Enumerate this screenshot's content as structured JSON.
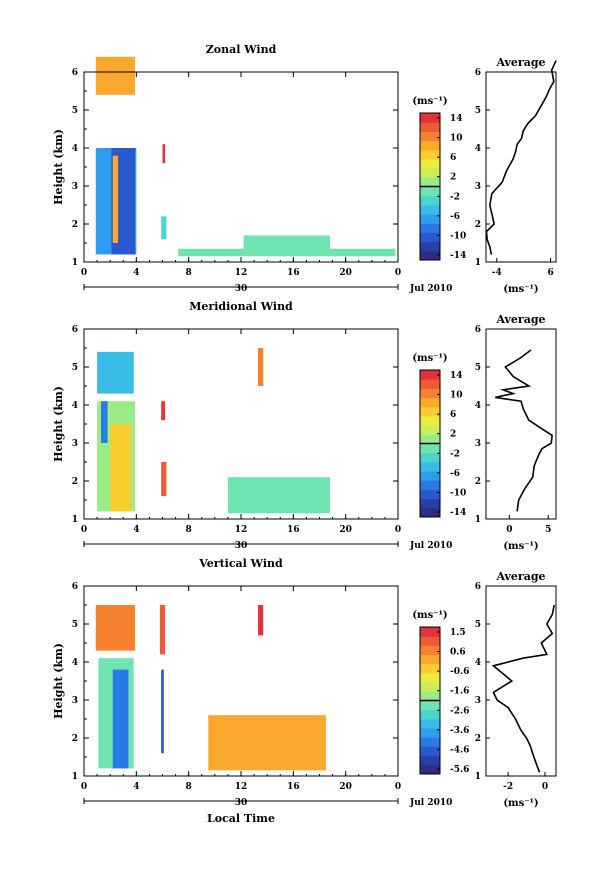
{
  "footer_xlabel": "Local Time",
  "colors": {
    "jet": [
      "#2b2f7a",
      "#2a3ea8",
      "#2b57cf",
      "#2a79e6",
      "#2e9df0",
      "#39bce6",
      "#4bd5d0",
      "#70e4b0",
      "#9deb86",
      "#c8ee5e",
      "#ecec3c",
      "#f8ce2e",
      "#fba92c",
      "#f6822f",
      "#ee5a35",
      "#e2333a"
    ]
  },
  "chart_data": [
    {
      "type": "heatmap",
      "title": "Zonal Wind",
      "ylabel": "Height (km)",
      "xlim": [
        0,
        24
      ],
      "ylim": [
        1,
        6
      ],
      "xticks": [
        "0",
        "4",
        "8",
        "12",
        "16",
        "20",
        "0"
      ],
      "yticks": [
        "1",
        "2",
        "3",
        "4",
        "5",
        "6"
      ],
      "date_label": "30",
      "date_right": "Jul 2010",
      "colorbar": {
        "unit": "(ms⁻¹)",
        "ticks": [
          "14",
          "10",
          "6",
          "2",
          "-2",
          "-6",
          "-10",
          "-14"
        ],
        "min": -16,
        "max": 16
      },
      "regions": [
        {
          "x0": 0.9,
          "x1": 3.9,
          "y0": 5.4,
          "y1": 6.4,
          "value": 9
        },
        {
          "x0": 0.9,
          "x1": 4.0,
          "y0": 1.2,
          "y1": 4.0,
          "value": -7
        },
        {
          "x0": 2.1,
          "x1": 3.9,
          "y0": 1.2,
          "y1": 4.0,
          "value": -12
        },
        {
          "x0": 2.2,
          "x1": 2.6,
          "y0": 1.5,
          "y1": 3.8,
          "value": 8
        },
        {
          "x0": 6.0,
          "x1": 6.2,
          "y0": 3.6,
          "y1": 4.1,
          "value": 14
        },
        {
          "x0": 5.9,
          "x1": 6.3,
          "y0": 1.6,
          "y1": 2.2,
          "value": -4
        },
        {
          "x0": 7.2,
          "x1": 23.8,
          "y0": 1.15,
          "y1": 1.35,
          "value": -1
        },
        {
          "x0": 12.2,
          "x1": 18.8,
          "y0": 1.2,
          "y1": 1.7,
          "value": -1
        }
      ],
      "profile": {
        "title": "Average",
        "unit": "(ms⁻¹)",
        "xlim": [
          -6,
          7
        ],
        "xticks": [
          "-4",
          "6"
        ],
        "xtick_values": [
          -4,
          6
        ],
        "x": [
          -5.0,
          -5.3,
          -5.8,
          -5.9,
          -4.5,
          -4.8,
          -5.3,
          -4.9,
          -3.0,
          -2.2,
          -1.0,
          -0.5,
          -0.2,
          0.6,
          0.9,
          1.8,
          3.2,
          4.2,
          5.2,
          5.8,
          6.6,
          6.2,
          7.0
        ],
        "y": [
          1.2,
          1.4,
          1.6,
          1.8,
          2.0,
          2.2,
          2.5,
          2.8,
          3.1,
          3.4,
          3.7,
          3.9,
          4.1,
          4.25,
          4.45,
          4.65,
          4.85,
          5.1,
          5.35,
          5.55,
          5.75,
          6.05,
          6.3
        ]
      }
    },
    {
      "type": "heatmap",
      "title": "Meridional Wind",
      "ylabel": "Height (km)",
      "xlim": [
        0,
        24
      ],
      "ylim": [
        1,
        6
      ],
      "xticks": [
        "0",
        "4",
        "8",
        "12",
        "16",
        "20",
        "0"
      ],
      "yticks": [
        "1",
        "2",
        "3",
        "4",
        "5",
        "6"
      ],
      "date_label": "30",
      "date_right": "Jul 2010",
      "colorbar": {
        "unit": "(ms⁻¹)",
        "ticks": [
          "14",
          "10",
          "6",
          "2",
          "-2",
          "-6",
          "-10",
          "-14"
        ],
        "min": -16,
        "max": 16
      },
      "regions": [
        {
          "x0": 1.0,
          "x1": 3.8,
          "y0": 4.3,
          "y1": 5.4,
          "value": -5
        },
        {
          "x0": 1.0,
          "x1": 3.9,
          "y0": 1.2,
          "y1": 4.1,
          "value": 0
        },
        {
          "x0": 2.0,
          "x1": 3.6,
          "y0": 1.2,
          "y1": 3.5,
          "value": 6
        },
        {
          "x0": 1.3,
          "x1": 1.8,
          "y0": 3.0,
          "y1": 4.1,
          "value": -9
        },
        {
          "x0": 5.9,
          "x1": 6.2,
          "y0": 3.6,
          "y1": 4.1,
          "value": 14
        },
        {
          "x0": 5.9,
          "x1": 6.3,
          "y0": 1.6,
          "y1": 2.5,
          "value": 12
        },
        {
          "x0": 13.3,
          "x1": 13.7,
          "y0": 4.5,
          "y1": 5.5,
          "value": 11
        },
        {
          "x0": 11.0,
          "x1": 18.8,
          "y0": 1.15,
          "y1": 2.1,
          "value": -1
        }
      ],
      "profile": {
        "title": "Average",
        "unit": "(ms⁻¹)",
        "xlim": [
          -3,
          6
        ],
        "xticks": [
          "0",
          "5"
        ],
        "xtick_values": [
          0,
          5
        ],
        "x": [
          1.0,
          1.2,
          2.0,
          3.0,
          3.2,
          3.8,
          4.2,
          5.4,
          5.5,
          4.0,
          2.5,
          1.8,
          1.5,
          -1.8,
          0.5,
          -0.8,
          2.5,
          0.5,
          -0.5,
          1.5,
          2.8
        ],
        "y": [
          1.2,
          1.5,
          1.8,
          2.1,
          2.4,
          2.7,
          2.85,
          3.0,
          3.2,
          3.4,
          3.6,
          3.9,
          4.1,
          4.2,
          4.3,
          4.4,
          4.5,
          4.75,
          5.0,
          5.25,
          5.45
        ]
      }
    },
    {
      "type": "heatmap",
      "title": "Vertical Wind",
      "ylabel": "Height (km)",
      "xlabel": "Local Time",
      "xlim": [
        0,
        24
      ],
      "ylim": [
        1,
        6
      ],
      "xticks": [
        "0",
        "4",
        "8",
        "12",
        "16",
        "20",
        "0"
      ],
      "yticks": [
        "1",
        "2",
        "3",
        "4",
        "5",
        "6"
      ],
      "date_label": "30",
      "date_right": "Jul 2010",
      "colorbar": {
        "unit": "(ms⁻¹)",
        "ticks": [
          "1.5",
          "0.6",
          "-0.6",
          "-1.6",
          "-2.6",
          "-3.6",
          "-4.6",
          "-5.6"
        ],
        "min": -6.0,
        "max": 2.0
      },
      "regions": [
        {
          "x0": 0.9,
          "x1": 3.9,
          "y0": 4.3,
          "y1": 5.5,
          "value": 0.5
        },
        {
          "x0": 1.1,
          "x1": 3.8,
          "y0": 1.2,
          "y1": 4.1,
          "value": -2.5
        },
        {
          "x0": 2.2,
          "x1": 3.4,
          "y0": 1.2,
          "y1": 3.8,
          "value": -4.5
        },
        {
          "x0": 5.9,
          "x1": 6.1,
          "y0": 1.6,
          "y1": 3.8,
          "value": -5.0
        },
        {
          "x0": 13.3,
          "x1": 13.7,
          "y0": 4.7,
          "y1": 5.5,
          "value": 1.5
        },
        {
          "x0": 9.5,
          "x1": 18.5,
          "y0": 1.15,
          "y1": 2.6,
          "value": 0.2
        },
        {
          "x0": 5.8,
          "x1": 6.2,
          "y0": 4.2,
          "y1": 5.5,
          "value": 1.0
        }
      ],
      "profile": {
        "title": "Average",
        "unit": "(ms⁻¹)",
        "xlim": [
          -3.2,
          0.6
        ],
        "xticks": [
          "-2",
          "0"
        ],
        "xtick_values": [
          -2,
          0
        ],
        "x": [
          -0.3,
          -0.6,
          -0.8,
          -1.0,
          -1.3,
          -1.6,
          -2.0,
          -2.6,
          -2.8,
          -1.8,
          -2.3,
          -2.8,
          -1.2,
          0.1,
          -0.2,
          0.4,
          0.1,
          0.4,
          0.5
        ],
        "y": [
          1.1,
          1.5,
          1.8,
          2.0,
          2.2,
          2.5,
          2.8,
          3.0,
          3.2,
          3.5,
          3.7,
          3.9,
          4.1,
          4.2,
          4.5,
          4.75,
          5.0,
          5.25,
          5.5
        ]
      }
    }
  ]
}
